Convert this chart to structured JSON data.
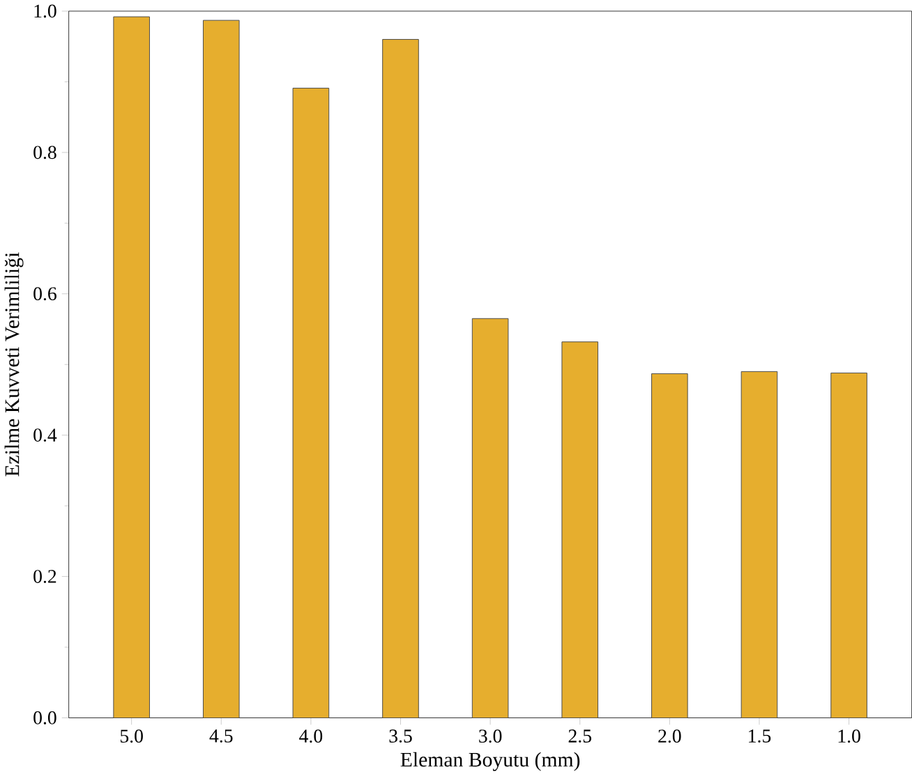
{
  "chart_data": {
    "type": "bar",
    "xlabel": "Eleman Boyutu (mm)",
    "ylabel": "Ezilme Kuvveti Verimliliği",
    "categories": [
      "5.0",
      "4.5",
      "4.0",
      "3.5",
      "3.0",
      "2.5",
      "2.0",
      "1.5",
      "1.0"
    ],
    "values": [
      0.992,
      0.987,
      0.891,
      0.96,
      0.565,
      0.532,
      0.487,
      0.49,
      0.488
    ],
    "color": "#e6ae2e",
    "ylim": [
      0,
      1.0
    ],
    "yticks": [
      {
        "value": 0,
        "label": "0.0"
      },
      {
        "value": 0.2,
        "label": "0.2"
      },
      {
        "value": 0.4,
        "label": "0.4"
      },
      {
        "value": 0.6,
        "label": "0.6"
      },
      {
        "value": 0.8,
        "label": "0.8"
      },
      {
        "value": 1.0,
        "label": "1.0"
      }
    ],
    "grid": false
  }
}
